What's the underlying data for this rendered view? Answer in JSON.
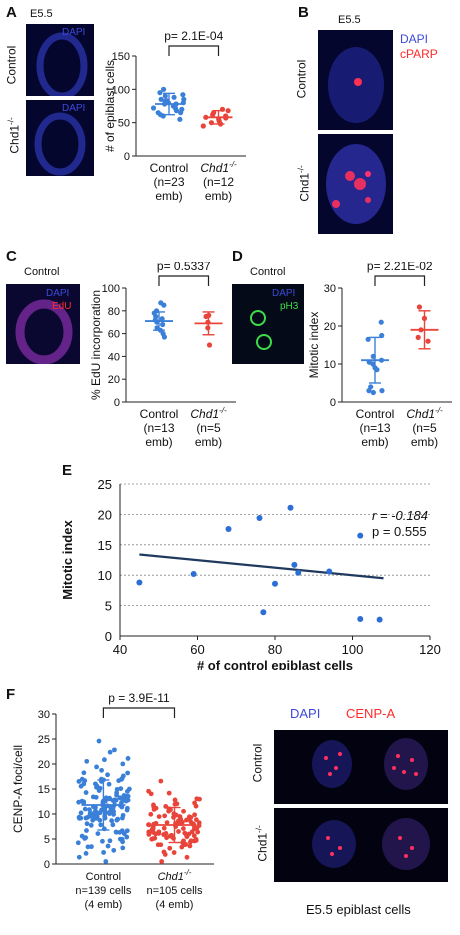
{
  "panels": {
    "A": {
      "letter": "A",
      "stage": "E5.5",
      "row1": "Control",
      "row2": "Chd1",
      "row2_sup": "-/-",
      "stain": "DAPI",
      "pvalue": "p= 2.1E-04",
      "ylabel": "# of epiblast cells",
      "yticks": [
        "0",
        "50",
        "100",
        "150"
      ],
      "groups": [
        {
          "line1": "Control",
          "line2": "(n=23",
          "line3": "emb)",
          "italic": false
        },
        {
          "line1": "Chd1",
          "sup": "-/-",
          "line2": "(n=12",
          "line3": "emb)",
          "italic": true
        }
      ]
    },
    "B": {
      "letter": "B",
      "stage": "E5.5",
      "row1": "Control",
      "row2": "Chd1",
      "row2_sup": "-/-",
      "stain1": "DAPI",
      "stain2": "cPARP"
    },
    "C": {
      "letter": "C",
      "title": "Control",
      "stain1": "DAPI",
      "stain2": "EdU",
      "pvalue": "p= 0.5337",
      "ylabel": "% EdU incorporation",
      "yticks": [
        "0",
        "20",
        "40",
        "60",
        "80",
        "100"
      ],
      "groups": [
        {
          "line1": "Control",
          "line2": "(n=13",
          "line3": "emb)",
          "italic": false
        },
        {
          "line1": "Chd1",
          "sup": "-/-",
          "line2": "(n=5",
          "line3": "emb)",
          "italic": true
        }
      ]
    },
    "D": {
      "letter": "D",
      "title": "Control",
      "stain1": "DAPI",
      "stain2": "pH3",
      "pvalue": "p= 2.21E-02",
      "ylabel": "Mitotic index",
      "yticks": [
        "0",
        "10",
        "20",
        "30"
      ],
      "groups": [
        {
          "line1": "Control",
          "line2": "(n=13",
          "line3": "emb)",
          "italic": false
        },
        {
          "line1": "Chd1",
          "sup": "-/-",
          "line2": "(n=5",
          "line3": "emb)",
          "italic": true
        }
      ]
    },
    "E": {
      "letter": "E",
      "ylabel": "Mitotic index",
      "xlabel": "# of control epiblast cells",
      "r_text": "r = -0.184",
      "p_text": "p = 0.555"
    },
    "F": {
      "letter": "F",
      "pvalue": "p = 3.9E-11",
      "ylabel": "CENP-A foci/cell",
      "yticks": [
        "0",
        "5",
        "10",
        "15",
        "20",
        "25",
        "30"
      ],
      "groups": [
        {
          "line1": "Control",
          "line2": "n=139 cells",
          "line3": "(4 emb)",
          "italic": false
        },
        {
          "line1": "Chd1",
          "sup": "-/-",
          "line2": "n=105 cells",
          "line3": "(4 emb)",
          "italic": true
        }
      ],
      "stain1": "DAPI",
      "stain2": "CENP-A",
      "row1": "Control",
      "row2": "Chd1",
      "row2_sup": "-/-",
      "caption": "E5.5 epiblast cells"
    }
  },
  "colors": {
    "blue": "#3a7fd8",
    "red": "#e8443a",
    "line": "#1f3a5e",
    "dapi": "#3d4ad8",
    "stain_red": "#ff2a2a",
    "stain_green": "#3ddc4a"
  },
  "chart_data": [
    {
      "panel": "A",
      "type": "scatter",
      "categories": [
        "Control",
        "Chd1-/-"
      ],
      "ylim": [
        0,
        150
      ],
      "ylabel": "# of epiblast cells",
      "series": [
        {
          "name": "Control",
          "mean": 78,
          "sd": 16,
          "values": [
            100,
            95,
            92,
            90,
            88,
            85,
            85,
            83,
            82,
            80,
            80,
            78,
            78,
            75,
            72,
            72,
            70,
            68,
            65,
            65,
            62,
            60,
            55
          ]
        },
        {
          "name": "Chd1-/-",
          "mean": 58,
          "sd": 10,
          "values": [
            70,
            68,
            65,
            62,
            60,
            58,
            57,
            55,
            52,
            50,
            48,
            45
          ]
        }
      ]
    },
    {
      "panel": "C",
      "type": "scatter",
      "categories": [
        "Control",
        "Chd1-/-"
      ],
      "ylim": [
        0,
        100
      ],
      "ylabel": "% EdU incorporation",
      "series": [
        {
          "name": "Control",
          "mean": 71,
          "sd": 8,
          "values": [
            87,
            85,
            80,
            78,
            75,
            73,
            72,
            70,
            68,
            65,
            63,
            60,
            57
          ]
        },
        {
          "name": "Chd1-/-",
          "mean": 69,
          "sd": 10,
          "values": [
            76,
            75,
            70,
            65,
            50
          ]
        }
      ]
    },
    {
      "panel": "D",
      "type": "scatter",
      "categories": [
        "Control",
        "Chd1-/-"
      ],
      "ylim": [
        0,
        30
      ],
      "ylabel": "Mitotic index",
      "series": [
        {
          "name": "Control",
          "mean": 11,
          "sd": 6,
          "values": [
            21,
            17.5,
            16.5,
            12,
            11,
            10.5,
            10,
            9,
            8.5,
            4,
            3,
            3,
            2.5
          ]
        },
        {
          "name": "Chd1-/-",
          "mean": 19,
          "sd": 5,
          "values": [
            25,
            22,
            19,
            17,
            16
          ]
        }
      ]
    },
    {
      "panel": "E",
      "type": "scatter",
      "xlabel": "# of control epiblast cells",
      "ylabel": "Mitotic index",
      "xlim": [
        40,
        120
      ],
      "ylim": [
        0,
        25
      ],
      "xticks": [
        40,
        60,
        80,
        100,
        120
      ],
      "yticks": [
        0,
        5,
        10,
        15,
        20,
        25
      ],
      "grid": true,
      "points": [
        [
          45,
          8.8
        ],
        [
          59,
          10.2
        ],
        [
          68,
          17.6
        ],
        [
          76,
          19.4
        ],
        [
          77,
          3.9
        ],
        [
          80,
          8.6
        ],
        [
          84,
          21.1
        ],
        [
          85,
          11.7
        ],
        [
          86,
          10.4
        ],
        [
          94,
          10.6
        ],
        [
          102,
          16.5
        ],
        [
          102,
          2.8
        ],
        [
          107,
          2.7
        ]
      ],
      "fit": {
        "x": [
          45,
          108
        ],
        "y": [
          13.4,
          9.5
        ]
      }
    },
    {
      "panel": "F",
      "type": "scatter",
      "categories": [
        "Control",
        "Chd1-/-"
      ],
      "ylim": [
        0,
        30
      ],
      "ylabel": "CENP-A foci/cell",
      "series": [
        {
          "name": "Control",
          "n": 139,
          "mean": 11.8,
          "sd": 5
        },
        {
          "name": "Chd1-/-",
          "n": 105,
          "mean": 7.8,
          "sd": 3.5
        }
      ]
    }
  ]
}
